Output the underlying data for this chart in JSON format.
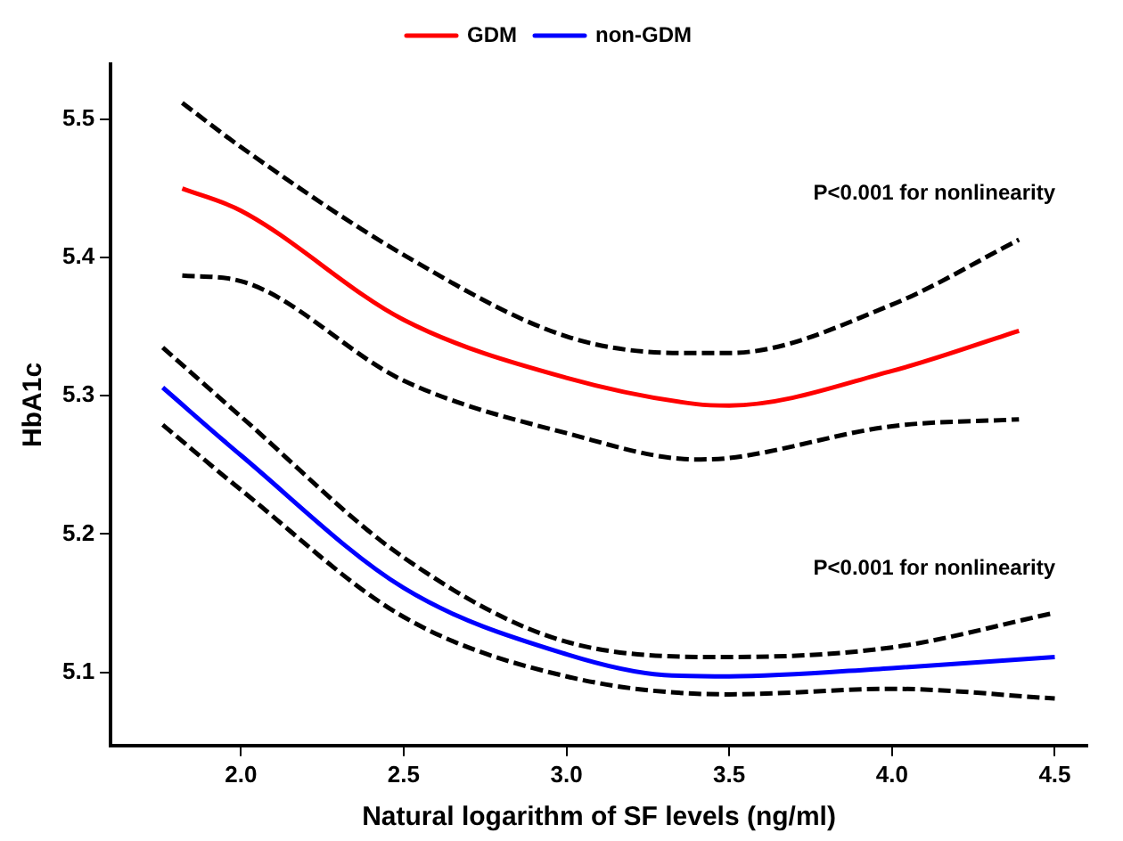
{
  "chart_data": {
    "type": "line",
    "xlabel": "Natural logarithm of SF levels (ng/ml)",
    "ylabel": "HbA1c",
    "xlim": [
      1.6,
      4.6
    ],
    "xticks": [
      {
        "value": 2,
        "label": "2.0"
      },
      2.5,
      {
        "value": 3,
        "label": "3.0"
      },
      3.5,
      {
        "value": 4,
        "label": "4.0"
      },
      4.5
    ],
    "ylim": [
      5.047,
      5.54
    ],
    "yticks": [
      5.1,
      5.2,
      5.3,
      5.4,
      5.5
    ],
    "grid": false,
    "legend": "top",
    "marker": "none",
    "annotations": [
      "P<0.001 for nonlinearity",
      "P<0.001 for nonlinearity"
    ],
    "series": [
      {
        "name": "GDM",
        "color": "#ff0000",
        "line_style": "solid",
        "x": [
          1.82,
          2.0,
          2.5,
          3.0,
          3.4,
          3.5,
          4.0,
          4.39
        ],
        "values": [
          5.45,
          5.434,
          5.355,
          5.313,
          5.294,
          5.293,
          5.318,
          5.347
        ]
      },
      {
        "color": "#000000",
        "line_style": "dashed",
        "x": [
          1.82,
          2.0,
          2.5,
          3.0,
          3.35,
          3.5,
          4.0,
          4.39
        ],
        "values": [
          5.512,
          5.48,
          5.402,
          5.343,
          5.331,
          5.331,
          5.366,
          5.413
        ]
      },
      {
        "color": "#000000",
        "line_style": "dashed",
        "x": [
          1.82,
          2.0,
          2.5,
          3.0,
          3.4,
          3.5,
          4.0,
          4.39
        ],
        "values": [
          5.387,
          5.383,
          5.311,
          5.273,
          5.254,
          5.255,
          5.278,
          5.283
        ]
      },
      {
        "name": "non-GDM",
        "color": "#0000ff",
        "line_style": "solid",
        "x": [
          1.76,
          2.0,
          2.5,
          3.0,
          3.3,
          3.5,
          4.0,
          4.5
        ],
        "values": [
          5.306,
          5.257,
          5.161,
          5.113,
          5.098,
          5.097,
          5.103,
          5.111
        ]
      },
      {
        "color": "#000000",
        "line_style": "dashed",
        "x": [
          1.76,
          2.0,
          2.5,
          3.0,
          3.5,
          4.0,
          4.5
        ],
        "values": [
          5.335,
          5.285,
          5.183,
          5.122,
          5.111,
          5.118,
          5.143
        ]
      },
      {
        "color": "#000000",
        "line_style": "dashed",
        "x": [
          1.76,
          2.0,
          2.5,
          3.0,
          3.5,
          4.0,
          4.5
        ],
        "values": [
          5.279,
          5.232,
          5.14,
          5.097,
          5.084,
          5.088,
          5.081
        ]
      }
    ]
  }
}
